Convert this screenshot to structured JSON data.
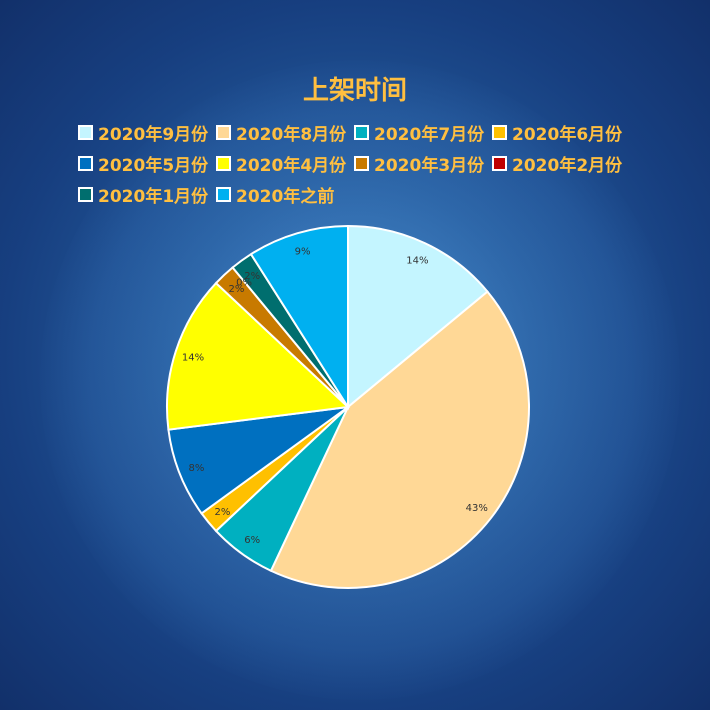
{
  "chart_data": {
    "type": "pie",
    "title": "上架时间",
    "legend_position": "top",
    "categories": [
      "2020年9月份",
      "2020年8月份",
      "2020年7月份",
      "2020年6月份",
      "2020年5月份",
      "2020年4月份",
      "2020年3月份",
      "2020年2月份",
      "2020年1月份",
      "2020年之前"
    ],
    "values": [
      14,
      43,
      6,
      2,
      8,
      14,
      2,
      0,
      2,
      9
    ],
    "labels": [
      "14%",
      "43%",
      "6%",
      "2%",
      "8%",
      "14%",
      "2%",
      "0%",
      "2%",
      "9%"
    ],
    "colors": [
      "#c4f5ff",
      "#ffd896",
      "#00b0c0",
      "#ffc000",
      "#0070c0",
      "#ffff00",
      "#c87a00",
      "#c00000",
      "#006e6e",
      "#00b0f0"
    ]
  }
}
